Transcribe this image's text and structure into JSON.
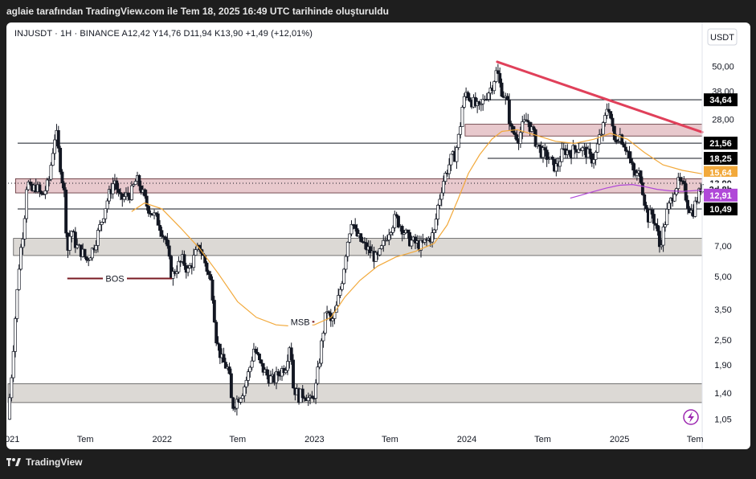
{
  "header": {
    "attribution": "aglaie tarafından TradingView.com ile Tem 18, 2025 16:49 UTC tarihinde oluşturuldu"
  },
  "legend": {
    "text": "INJUSDT · 1H · BINANCE  A12,42  Y14,76  D11,94  K13,90  +1,49 (+12,01%)"
  },
  "brand": {
    "name": "TradingView"
  },
  "colors": {
    "background": "#ffffff",
    "frame": "#1e1e1e",
    "candle": "#131722",
    "trendline": "#e0405a",
    "ma_slow": "#f2a93b",
    "ma_fast": "#b048d8",
    "zone_red": "#e8c9cd",
    "zone_grey": "#dcd9d5"
  },
  "chart_data": {
    "type": "candlestick",
    "symbol": "INJUSDT",
    "timeframe": "1H",
    "exchange": "BINANCE",
    "ohlc": {
      "open": "12,42",
      "high": "14,76",
      "low": "11,94",
      "close": "13,90"
    },
    "change": "+1,49 (+12,01%)",
    "currency_label": "USDT",
    "y_scale": "log",
    "ylim": [
      0.95,
      62
    ],
    "xlim": [
      "2020-12-28",
      "2025-07-18"
    ],
    "x_ticks": [
      "2021",
      "Tem",
      "2022",
      "Tem",
      "2023",
      "Tem",
      "2024",
      "Tem",
      "2025",
      "Tem"
    ],
    "y_ticks": [
      "50,00",
      "38,00",
      "28,00",
      "7,00",
      "5,00",
      "3,50",
      "2,50",
      "1,90",
      "1,40",
      "1,05"
    ],
    "price_tags": [
      {
        "label": "34,64",
        "value": 34.64,
        "kind": "level"
      },
      {
        "label": "21,56",
        "value": 21.56,
        "kind": "level"
      },
      {
        "label": "18,25",
        "value": 18.25,
        "kind": "level"
      },
      {
        "label": "15,64",
        "value": 15.64,
        "kind": "ma"
      },
      {
        "label": "13,90",
        "value": 13.9,
        "kind": "last"
      },
      {
        "label": "2d 8h",
        "value": 13.0,
        "kind": "countdown"
      },
      {
        "label": "12,91",
        "value": 12.2,
        "kind": "ma2"
      },
      {
        "label": "10,49",
        "value": 10.49,
        "kind": "level"
      }
    ],
    "horizontal_levels": [
      {
        "price": 34.64,
        "start": "2024-02-01"
      },
      {
        "price": 21.56,
        "start": "2021-01-20"
      },
      {
        "price": 18.25,
        "start": "2024-02-20"
      },
      {
        "price": 10.49,
        "start": "2021-01-20"
      }
    ],
    "zones": [
      {
        "top": 26.5,
        "bottom": 23.3,
        "start": "2023-12-28",
        "color": "red"
      },
      {
        "top": 14.6,
        "bottom": 12.5,
        "start": "2021-01-15",
        "color": "red"
      },
      {
        "top": 7.6,
        "bottom": 6.3,
        "start": "2021-01-10",
        "color": "grey"
      },
      {
        "top": 1.55,
        "bottom": 1.26,
        "start": "2020-12-28",
        "color": "grey"
      }
    ],
    "trendline": {
      "from": {
        "date": "2024-03-14",
        "price": 52.5
      },
      "to": {
        "date": "2025-07-18",
        "price": 24.3
      }
    },
    "annotations": [
      {
        "text": "BOS",
        "date": "2021-09-10",
        "price": 4.9,
        "line_from": "2021-05-19",
        "line_to": "2022-01-25"
      },
      {
        "text": "MSB",
        "date": "2022-11-28",
        "price": 3.05,
        "line_from": "2022-11-01",
        "line_to": "2023-01-01"
      }
    ],
    "price_path": [
      [
        "2020-12-28",
        1.05
      ],
      [
        "2021-01-05",
        1.6
      ],
      [
        "2021-01-15",
        3.2
      ],
      [
        "2021-01-25",
        6.0
      ],
      [
        "2021-02-05",
        9.0
      ],
      [
        "2021-02-12",
        14.5
      ],
      [
        "2021-02-22",
        12.5
      ],
      [
        "2021-03-05",
        13.5
      ],
      [
        "2021-03-20",
        12.0
      ],
      [
        "2021-04-05",
        14.0
      ],
      [
        "2021-04-15",
        20.0
      ],
      [
        "2021-04-22",
        25.0
      ],
      [
        "2021-05-01",
        18.0
      ],
      [
        "2021-05-12",
        12.5
      ],
      [
        "2021-05-20",
        6.5
      ],
      [
        "2021-05-28",
        8.5
      ],
      [
        "2021-06-10",
        7.0
      ],
      [
        "2021-06-25",
        6.5
      ],
      [
        "2021-07-05",
        6.0
      ],
      [
        "2021-07-20",
        6.8
      ],
      [
        "2021-08-05",
        8.5
      ],
      [
        "2021-08-20",
        11.0
      ],
      [
        "2021-09-01",
        13.0
      ],
      [
        "2021-09-10",
        14.5
      ],
      [
        "2021-09-22",
        11.5
      ],
      [
        "2021-10-05",
        12.0
      ],
      [
        "2021-10-20",
        12.5
      ],
      [
        "2021-11-01",
        14.5
      ],
      [
        "2021-11-10",
        13.5
      ],
      [
        "2021-11-25",
        11.0
      ],
      [
        "2021-12-10",
        10.0
      ],
      [
        "2021-12-25",
        9.0
      ],
      [
        "2022-01-10",
        7.5
      ],
      [
        "2022-01-25",
        5.0
      ],
      [
        "2022-02-05",
        5.5
      ],
      [
        "2022-02-20",
        6.0
      ],
      [
        "2022-03-05",
        5.3
      ],
      [
        "2022-03-20",
        6.2
      ],
      [
        "2022-04-01",
        7.0
      ],
      [
        "2022-04-15",
        5.8
      ],
      [
        "2022-05-01",
        4.5
      ],
      [
        "2022-05-12",
        2.5
      ],
      [
        "2022-05-25",
        2.0
      ],
      [
        "2022-06-10",
        1.8
      ],
      [
        "2022-06-18",
        1.2
      ],
      [
        "2022-06-30",
        1.3
      ],
      [
        "2022-07-15",
        1.45
      ],
      [
        "2022-07-30",
        1.8
      ],
      [
        "2022-08-10",
        2.3
      ],
      [
        "2022-08-25",
        1.9
      ],
      [
        "2022-09-10",
        1.7
      ],
      [
        "2022-09-25",
        1.6
      ],
      [
        "2022-10-10",
        1.75
      ],
      [
        "2022-10-25",
        1.9
      ],
      [
        "2022-11-05",
        2.5
      ],
      [
        "2022-11-12",
        1.5
      ],
      [
        "2022-11-25",
        1.35
      ],
      [
        "2022-12-10",
        1.4
      ],
      [
        "2022-12-25",
        1.25
      ],
      [
        "2023-01-05",
        1.5
      ],
      [
        "2023-01-15",
        2.1
      ],
      [
        "2023-01-25",
        3.0
      ],
      [
        "2023-02-01",
        3.5
      ],
      [
        "2023-02-10",
        3.0
      ],
      [
        "2023-02-20",
        3.3
      ],
      [
        "2023-03-01",
        4.0
      ],
      [
        "2023-03-10",
        5.0
      ],
      [
        "2023-03-20",
        7.0
      ],
      [
        "2023-04-01",
        9.5
      ],
      [
        "2023-04-10",
        8.0
      ],
      [
        "2023-04-20",
        7.5
      ],
      [
        "2023-05-01",
        7.0
      ],
      [
        "2023-05-15",
        6.6
      ],
      [
        "2023-06-01",
        6.0
      ],
      [
        "2023-06-15",
        7.0
      ],
      [
        "2023-07-01",
        8.5
      ],
      [
        "2023-07-15",
        9.5
      ],
      [
        "2023-08-01",
        8.5
      ],
      [
        "2023-08-15",
        7.5
      ],
      [
        "2023-09-01",
        7.2
      ],
      [
        "2023-09-15",
        7.0
      ],
      [
        "2023-10-01",
        7.5
      ],
      [
        "2023-10-15",
        8.0
      ],
      [
        "2023-10-25",
        11.0
      ],
      [
        "2023-11-05",
        14.0
      ],
      [
        "2023-11-15",
        16.0
      ],
      [
        "2023-11-25",
        18.0
      ],
      [
        "2023-12-05",
        19.0
      ],
      [
        "2023-12-15",
        24.0
      ],
      [
        "2023-12-22",
        32.0
      ],
      [
        "2024-01-01",
        38.0
      ],
      [
        "2024-01-10",
        35.0
      ],
      [
        "2024-01-20",
        33.0
      ],
      [
        "2024-02-01",
        31.0
      ],
      [
        "2024-02-15",
        36.0
      ],
      [
        "2024-03-01",
        40.0
      ],
      [
        "2024-03-14",
        48.0
      ],
      [
        "2024-03-22",
        40.0
      ],
      [
        "2024-04-01",
        36.0
      ],
      [
        "2024-04-10",
        32.0
      ],
      [
        "2024-04-15",
        25.0
      ],
      [
        "2024-04-25",
        24.0
      ],
      [
        "2024-05-05",
        23.0
      ],
      [
        "2024-05-15",
        26.0
      ],
      [
        "2024-05-25",
        28.0
      ],
      [
        "2024-06-05",
        25.0
      ],
      [
        "2024-06-15",
        22.0
      ],
      [
        "2024-06-25",
        20.0
      ],
      [
        "2024-07-05",
        19.0
      ],
      [
        "2024-07-15",
        18.5
      ],
      [
        "2024-07-25",
        17.0
      ],
      [
        "2024-08-05",
        16.5
      ],
      [
        "2024-08-15",
        19.0
      ],
      [
        "2024-08-25",
        20.0
      ],
      [
        "2024-09-05",
        19.5
      ],
      [
        "2024-09-15",
        20.0
      ],
      [
        "2024-09-25",
        21.0
      ],
      [
        "2024-10-05",
        20.0
      ],
      [
        "2024-10-15",
        19.5
      ],
      [
        "2024-10-25",
        18.0
      ],
      [
        "2024-11-05",
        19.0
      ],
      [
        "2024-11-15",
        23.0
      ],
      [
        "2024-11-25",
        26.0
      ],
      [
        "2024-12-05",
        34.0
      ],
      [
        "2024-12-12",
        28.0
      ],
      [
        "2024-12-20",
        22.0
      ],
      [
        "2025-01-01",
        24.0
      ],
      [
        "2025-01-10",
        22.0
      ],
      [
        "2025-01-20",
        20.0
      ],
      [
        "2025-02-01",
        16.0
      ],
      [
        "2025-02-10",
        15.0
      ],
      [
        "2025-02-20",
        15.5
      ],
      [
        "2025-03-01",
        12.0
      ],
      [
        "2025-03-10",
        9.5
      ],
      [
        "2025-03-20",
        10.0
      ],
      [
        "2025-04-01",
        8.5
      ],
      [
        "2025-04-07",
        6.9
      ],
      [
        "2025-04-15",
        8.0
      ],
      [
        "2025-04-25",
        10.0
      ],
      [
        "2025-05-05",
        11.5
      ],
      [
        "2025-05-15",
        13.5
      ],
      [
        "2025-05-25",
        14.0
      ],
      [
        "2025-06-05",
        13.0
      ],
      [
        "2025-06-15",
        11.0
      ],
      [
        "2025-06-25",
        10.0
      ],
      [
        "2025-07-05",
        11.5
      ],
      [
        "2025-07-12",
        12.5
      ],
      [
        "2025-07-18",
        13.9
      ]
    ],
    "ma_slow": [
      [
        "2021-10-20",
        10.2
      ],
      [
        "2021-11-20",
        11.2
      ],
      [
        "2022-01-01",
        10.5
      ],
      [
        "2022-02-15",
        8.5
      ],
      [
        "2022-04-01",
        6.8
      ],
      [
        "2022-05-15",
        5.2
      ],
      [
        "2022-07-01",
        3.8
      ],
      [
        "2022-08-15",
        3.2
      ],
      [
        "2022-10-01",
        2.95
      ],
      [
        "2022-11-15",
        2.9
      ],
      [
        "2023-01-01",
        2.95
      ],
      [
        "2023-02-10",
        3.2
      ],
      [
        "2023-03-15",
        4.0
      ],
      [
        "2023-04-20",
        4.8
      ],
      [
        "2023-06-01",
        5.6
      ],
      [
        "2023-07-15",
        6.2
      ],
      [
        "2023-09-01",
        6.6
      ],
      [
        "2023-10-15",
        7.2
      ],
      [
        "2023-11-15",
        8.8
      ],
      [
        "2023-12-10",
        11.5
      ],
      [
        "2024-01-05",
        15.5
      ],
      [
        "2024-02-01",
        19.0
      ],
      [
        "2024-03-01",
        22.5
      ],
      [
        "2024-03-25",
        24.5
      ],
      [
        "2024-05-01",
        25.0
      ],
      [
        "2024-06-15",
        23.5
      ],
      [
        "2024-08-01",
        22.0
      ],
      [
        "2024-09-15",
        21.5
      ],
      [
        "2024-11-01",
        22.5
      ],
      [
        "2024-12-10",
        24.0
      ],
      [
        "2025-01-20",
        22.5
      ],
      [
        "2025-03-01",
        19.5
      ],
      [
        "2025-04-15",
        17.0
      ],
      [
        "2025-06-01",
        16.0
      ],
      [
        "2025-07-18",
        15.4
      ]
    ],
    "ma_fast": [
      [
        "2024-09-05",
        11.8
      ],
      [
        "2024-10-01",
        12.2
      ],
      [
        "2024-11-01",
        12.7
      ],
      [
        "2024-12-01",
        13.2
      ],
      [
        "2025-01-01",
        13.6
      ],
      [
        "2025-02-01",
        13.7
      ],
      [
        "2025-03-01",
        13.4
      ],
      [
        "2025-04-01",
        13.0
      ],
      [
        "2025-05-01",
        12.8
      ],
      [
        "2025-06-01",
        12.7
      ],
      [
        "2025-07-18",
        12.9
      ]
    ]
  }
}
